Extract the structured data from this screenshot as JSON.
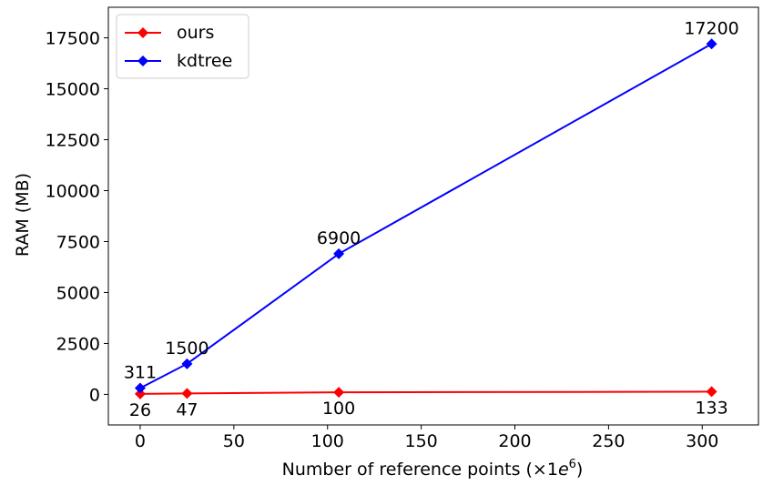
{
  "chart_data": {
    "type": "line",
    "title": "",
    "xlabel": "Number of reference points (×1",
    "xlabel_exp_base": "e",
    "xlabel_exp": "6",
    "xlabel_close": ")",
    "ylabel": "RAM (MB)",
    "xlim": [
      -17,
      330
    ],
    "ylim": [
      -1500,
      19000
    ],
    "xticks": [
      0,
      50,
      100,
      150,
      200,
      250,
      300
    ],
    "yticks": [
      0,
      2500,
      5000,
      7500,
      10000,
      12500,
      15000,
      17500
    ],
    "grid": false,
    "legend_position": "top-left",
    "series": [
      {
        "name": "ours",
        "color": "#ff0000",
        "marker": "diamond",
        "x": [
          0,
          25,
          106,
          305
        ],
        "y": [
          26,
          47,
          100,
          133
        ],
        "labels": [
          "26",
          "47",
          "100",
          "133"
        ],
        "label_position": "below"
      },
      {
        "name": "kdtree",
        "color": "#0000ff",
        "marker": "diamond",
        "x": [
          0,
          25,
          106,
          305
        ],
        "y": [
          311,
          1500,
          6900,
          17200
        ],
        "labels": [
          "311",
          "1500",
          "6900",
          "17200"
        ],
        "label_position": "above"
      }
    ]
  }
}
